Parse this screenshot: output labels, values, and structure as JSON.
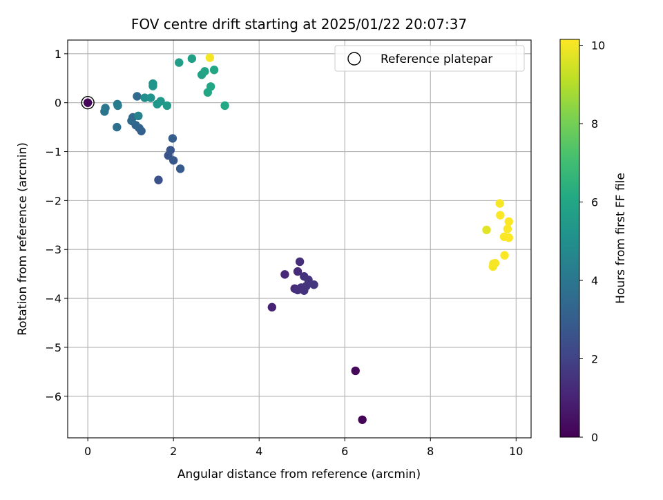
{
  "chart_data": {
    "type": "scatter",
    "title": "FOV centre drift starting at 2025/01/22 20:07:37",
    "xlabel": "Angular distance from reference (arcmin)",
    "ylabel": "Rotation from reference (arcmin)",
    "xlim": [
      -0.47,
      10.35
    ],
    "ylim": [
      -6.85,
      1.28
    ],
    "xticks": [
      0,
      2,
      4,
      6,
      8,
      10
    ],
    "yticks": [
      1,
      0,
      -1,
      -2,
      -3,
      -4,
      -5,
      -6
    ],
    "grid": true,
    "legend": {
      "position": "top-right",
      "entries": [
        "Reference platepar"
      ]
    },
    "reference_point": {
      "x": 0,
      "y": 0
    },
    "colorbar": {
      "label": "Hours from first FF file",
      "min": 0,
      "max": 10.15,
      "ticks": [
        0,
        2,
        4,
        6,
        8,
        10
      ],
      "colormap": "viridis"
    },
    "points": [
      {
        "x": 0.0,
        "y": 0.0,
        "c": 0.15
      },
      {
        "x": 6.41,
        "y": -6.48,
        "c": 0.1
      },
      {
        "x": 6.25,
        "y": -5.48,
        "c": 0.2
      },
      {
        "x": 4.3,
        "y": -4.18,
        "c": 1.0
      },
      {
        "x": 4.6,
        "y": -3.51,
        "c": 1.1
      },
      {
        "x": 4.83,
        "y": -3.8,
        "c": 1.2
      },
      {
        "x": 4.9,
        "y": -3.45,
        "c": 1.25
      },
      {
        "x": 4.95,
        "y": -3.25,
        "c": 1.3
      },
      {
        "x": 4.9,
        "y": -3.83,
        "c": 1.35
      },
      {
        "x": 4.98,
        "y": -3.78,
        "c": 1.4
      },
      {
        "x": 5.05,
        "y": -3.55,
        "c": 1.45
      },
      {
        "x": 5.1,
        "y": -3.75,
        "c": 1.5
      },
      {
        "x": 5.05,
        "y": -3.84,
        "c": 1.5
      },
      {
        "x": 5.15,
        "y": -3.62,
        "c": 1.55
      },
      {
        "x": 5.28,
        "y": -3.72,
        "c": 1.6
      },
      {
        "x": 1.65,
        "y": -1.58,
        "c": 2.5
      },
      {
        "x": 1.88,
        "y": -1.08,
        "c": 2.6
      },
      {
        "x": 1.93,
        "y": -0.97,
        "c": 2.7
      },
      {
        "x": 2.0,
        "y": -1.18,
        "c": 2.8
      },
      {
        "x": 2.16,
        "y": -1.35,
        "c": 2.9
      },
      {
        "x": 1.98,
        "y": -0.73,
        "c": 3.0
      },
      {
        "x": 1.25,
        "y": -0.58,
        "c": 3.1
      },
      {
        "x": 1.2,
        "y": -0.52,
        "c": 3.2
      },
      {
        "x": 1.12,
        "y": -0.46,
        "c": 3.3
      },
      {
        "x": 1.05,
        "y": -0.3,
        "c": 3.4
      },
      {
        "x": 1.02,
        "y": -0.37,
        "c": 3.45
      },
      {
        "x": 1.15,
        "y": 0.13,
        "c": 3.5
      },
      {
        "x": 0.68,
        "y": -0.5,
        "c": 3.7
      },
      {
        "x": 0.39,
        "y": -0.18,
        "c": 3.9
      },
      {
        "x": 0.41,
        "y": -0.11,
        "c": 4.0
      },
      {
        "x": 0.69,
        "y": -0.03,
        "c": 4.1
      },
      {
        "x": 0.7,
        "y": -0.06,
        "c": 4.2
      },
      {
        "x": 1.18,
        "y": -0.27,
        "c": 4.5
      },
      {
        "x": 1.33,
        "y": 0.1,
        "c": 5.0
      },
      {
        "x": 1.47,
        "y": 0.1,
        "c": 5.1
      },
      {
        "x": 1.52,
        "y": 0.39,
        "c": 5.2
      },
      {
        "x": 1.52,
        "y": 0.34,
        "c": 5.25
      },
      {
        "x": 1.62,
        "y": -0.03,
        "c": 5.3
      },
      {
        "x": 1.7,
        "y": 0.03,
        "c": 5.4
      },
      {
        "x": 1.85,
        "y": -0.06,
        "c": 5.5
      },
      {
        "x": 2.13,
        "y": 0.82,
        "c": 5.6
      },
      {
        "x": 2.43,
        "y": 0.9,
        "c": 5.7
      },
      {
        "x": 2.66,
        "y": 0.57,
        "c": 5.8
      },
      {
        "x": 2.73,
        "y": 0.64,
        "c": 5.9
      },
      {
        "x": 2.8,
        "y": 0.21,
        "c": 5.95
      },
      {
        "x": 2.87,
        "y": 0.33,
        "c": 6.0
      },
      {
        "x": 2.95,
        "y": 0.67,
        "c": 6.05
      },
      {
        "x": 3.2,
        "y": -0.06,
        "c": 6.1
      },
      {
        "x": 2.85,
        "y": 0.92,
        "c": 10.0
      },
      {
        "x": 9.31,
        "y": -2.6,
        "c": 9.7
      },
      {
        "x": 9.46,
        "y": -3.35,
        "c": 10.0
      },
      {
        "x": 9.47,
        "y": -3.29,
        "c": 10.0
      },
      {
        "x": 9.51,
        "y": -3.28,
        "c": 10.05
      },
      {
        "x": 9.62,
        "y": -2.06,
        "c": 10.05
      },
      {
        "x": 9.63,
        "y": -2.3,
        "c": 10.1
      },
      {
        "x": 9.72,
        "y": -2.74,
        "c": 10.1
      },
      {
        "x": 9.73,
        "y": -3.12,
        "c": 10.1
      },
      {
        "x": 9.8,
        "y": -2.58,
        "c": 10.1
      },
      {
        "x": 9.83,
        "y": -2.43,
        "c": 10.15
      },
      {
        "x": 9.83,
        "y": -2.76,
        "c": 10.15
      }
    ]
  }
}
